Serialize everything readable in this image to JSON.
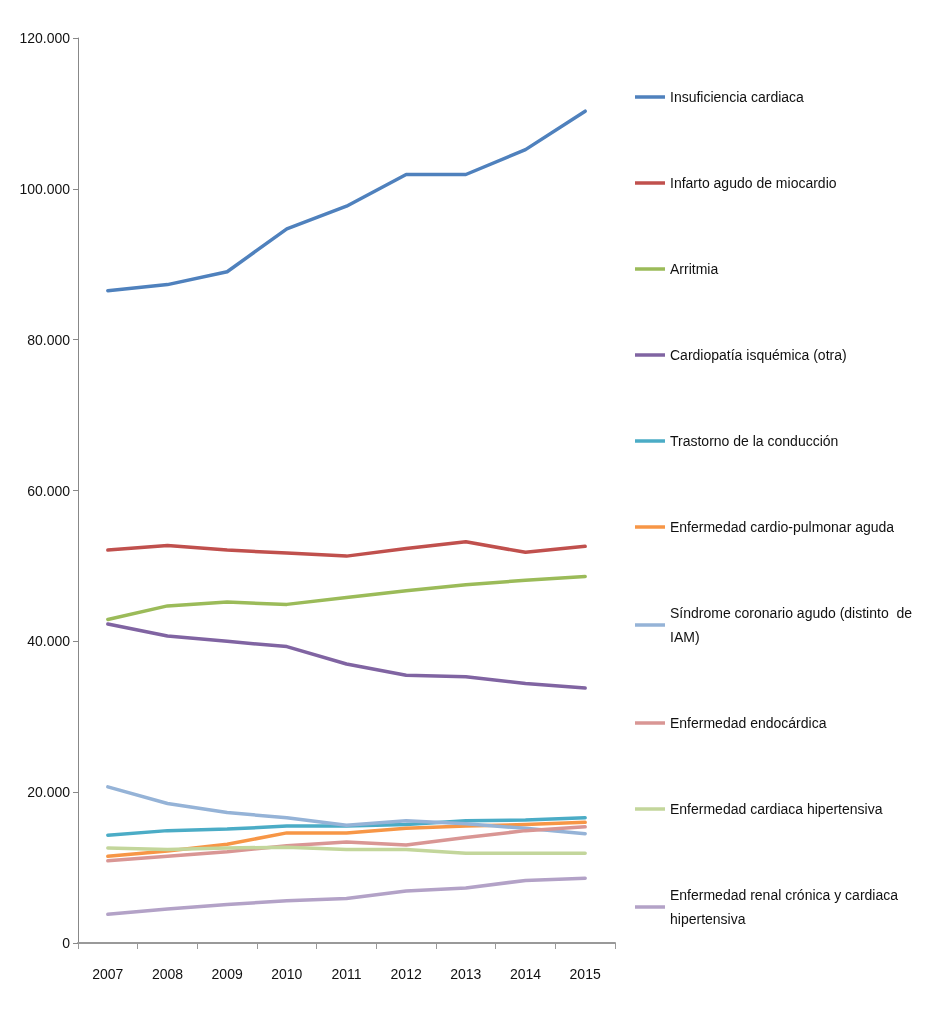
{
  "chart_data": {
    "type": "line",
    "categories": [
      "2007",
      "2008",
      "2009",
      "2010",
      "2011",
      "2012",
      "2013",
      "2014",
      "2015"
    ],
    "ylim": [
      0,
      120000
    ],
    "yticks": [
      0,
      {
        "value": 20000,
        "label": "20.000"
      },
      {
        "value": 40000,
        "label": "40.000"
      },
      {
        "value": 60000,
        "label": "60.000"
      },
      {
        "value": 80000,
        "label": "80.000"
      },
      {
        "value": 100000,
        "label": "100.000"
      },
      {
        "value": 120000,
        "label": "120.000"
      }
    ],
    "grid": false,
    "legend": "right",
    "marker": "none",
    "line_style": "solid",
    "series": [
      {
        "name": "Insuficiencia cardiaca",
        "color": "#4f81bd",
        "values": [
          86500,
          87300,
          89000,
          94700,
          97700,
          101900,
          101900,
          105200,
          110300
        ]
      },
      {
        "name": "Infarto agudo de miocardio",
        "color": "#c0504d",
        "values": [
          52100,
          52700,
          52100,
          51700,
          51300,
          52300,
          53200,
          51800,
          52600
        ]
      },
      {
        "name": "Arritmia",
        "color": "#9bbb59",
        "values": [
          42900,
          44700,
          45200,
          44900,
          45800,
          46700,
          47500,
          48100,
          48600
        ]
      },
      {
        "name": "Cardiopatía isquémica (otra)",
        "color": "#8064a2",
        "values": [
          42300,
          40700,
          40000,
          39300,
          37000,
          35500,
          35300,
          34400,
          33800
        ]
      },
      {
        "name": "Trastorno de la conducción",
        "color": "#4bacc6",
        "values": [
          14300,
          14900,
          15100,
          15500,
          15500,
          15700,
          16200,
          16300,
          16600
        ]
      },
      {
        "name": "Enfermedad cardio-pulmonar aguda",
        "color": "#f79646",
        "values": [
          11500,
          12200,
          13100,
          14600,
          14600,
          15200,
          15500,
          15700,
          16000
        ]
      },
      {
        "name": "Síndrome coronario agudo (distinto  de IAM)",
        "color": "#95b3d7",
        "values": [
          20700,
          18500,
          17300,
          16600,
          15600,
          16200,
          15800,
          15200,
          14500
        ]
      },
      {
        "name": "Enfermedad endocárdica",
        "color": "#d99694",
        "values": [
          10900,
          11500,
          12100,
          12900,
          13400,
          13000,
          14000,
          14900,
          15400
        ]
      },
      {
        "name": "Enfermedad cardiaca hipertensiva",
        "color": "#c3d69b",
        "values": [
          12600,
          12400,
          12600,
          12700,
          12400,
          12400,
          11900,
          11900,
          11900
        ]
      },
      {
        "name": "Enfermedad renal crónica y cardiaca hipertensiva",
        "color": "#b3a2c7",
        "values": [
          3800,
          4500,
          5100,
          5600,
          5900,
          6900,
          7300,
          8300,
          8600
        ]
      }
    ]
  }
}
